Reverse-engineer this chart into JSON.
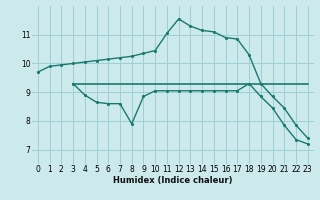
{
  "xlabel": "Humidex (Indice chaleur)",
  "xlim": [
    -0.5,
    23.5
  ],
  "ylim": [
    6.5,
    12.0
  ],
  "bg_color": "#cce9ec",
  "grid_color": "#9ecfd4",
  "line_color": "#1a7a6e",
  "line1_x": [
    0,
    1,
    2,
    3,
    4,
    5,
    6,
    7,
    8,
    9,
    10,
    11,
    12,
    13,
    14,
    15,
    16,
    17,
    18,
    19,
    20,
    21,
    22,
    23
  ],
  "line1_y": [
    9.7,
    9.9,
    9.95,
    10.0,
    10.05,
    10.1,
    10.15,
    10.2,
    10.25,
    10.35,
    10.45,
    11.05,
    11.55,
    11.3,
    11.15,
    11.1,
    10.9,
    10.85,
    10.3,
    9.3,
    8.85,
    8.45,
    7.85,
    7.4
  ],
  "line2_x": [
    3,
    4,
    5,
    6,
    7,
    8,
    9,
    10,
    11,
    12,
    13,
    14,
    15,
    16,
    17,
    18,
    19,
    20,
    21,
    22,
    23
  ],
  "line2_y": [
    9.3,
    8.9,
    8.65,
    8.6,
    8.6,
    7.9,
    8.85,
    9.05,
    9.05,
    9.05,
    9.05,
    9.05,
    9.05,
    9.05,
    9.05,
    9.3,
    8.85,
    8.45,
    7.85,
    7.35,
    7.2
  ],
  "line3_x": [
    3,
    23
  ],
  "line3_y": [
    9.3,
    9.3
  ],
  "yticks": [
    7,
    8,
    9,
    10,
    11
  ],
  "xticks": [
    0,
    1,
    2,
    3,
    4,
    5,
    6,
    7,
    8,
    9,
    10,
    11,
    12,
    13,
    14,
    15,
    16,
    17,
    18,
    19,
    20,
    21,
    22,
    23
  ]
}
